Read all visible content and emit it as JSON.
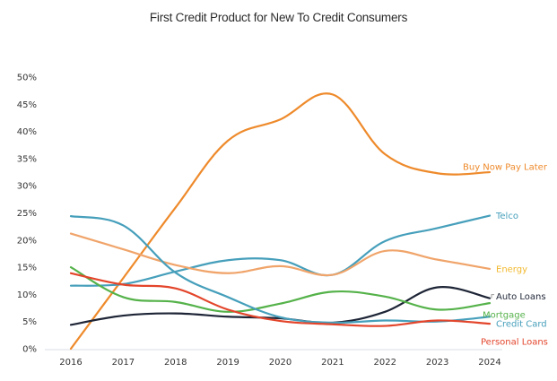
{
  "chart_data": {
    "type": "line",
    "title": "First Credit Product for New To Credit Consumers",
    "xlabel": "",
    "ylabel": "",
    "x": [
      "2016",
      "2017",
      "2018",
      "2019",
      "2020",
      "2021",
      "2022",
      "2023",
      "2024"
    ],
    "ylim": [
      0,
      50
    ],
    "yticks": [
      "0%",
      "5%",
      "10%",
      "15%",
      "20%",
      "25%",
      "30%",
      "35%",
      "40%",
      "45%",
      "50%"
    ],
    "ytick_values": [
      0,
      5,
      10,
      15,
      20,
      25,
      30,
      35,
      40,
      45,
      50
    ],
    "grid": false,
    "legend": "inline-right",
    "series": [
      {
        "name": "Buy Now Pay Later",
        "color": "#EE8A2B",
        "label_color": "#EE8A2B",
        "values": [
          0,
          13,
          26,
          38.3,
          42.2,
          46.8,
          35.8,
          32.3,
          32.5
        ]
      },
      {
        "name": "Telco",
        "color": "#469FBB",
        "label_color": "#469FBB",
        "values": [
          11.6,
          11.9,
          14.2,
          16.3,
          16.3,
          13.6,
          19.8,
          22.2,
          24.5
        ]
      },
      {
        "name": "Energy",
        "color": "#F0A46A",
        "label_color": "#F2B92E",
        "values": [
          21.2,
          18.3,
          15.4,
          13.9,
          15.2,
          13.6,
          18.0,
          16.4,
          14.7
        ]
      },
      {
        "name": "Auto Loans",
        "color": "#1E2536",
        "label_color": "#1E2536",
        "values": [
          4.4,
          6.1,
          6.5,
          5.9,
          5.6,
          4.8,
          6.8,
          11.3,
          9.3
        ]
      },
      {
        "name": "Mortgage",
        "color": "#55B24A",
        "label_color": "#55B24A",
        "values": [
          15.0,
          9.5,
          8.6,
          6.8,
          8.3,
          10.5,
          9.6,
          7.2,
          8.4
        ]
      },
      {
        "name": "Credit Card",
        "color": "#469FBB",
        "label_color": "#469FBB",
        "values": [
          24.4,
          22.7,
          14.0,
          9.5,
          5.8,
          4.8,
          5.2,
          5.0,
          5.9
        ]
      },
      {
        "name": "Personal Loans",
        "color": "#E3452B",
        "label_color": "#E3452B",
        "values": [
          13.9,
          11.8,
          11.1,
          7.2,
          5.1,
          4.5,
          4.2,
          5.2,
          4.6
        ]
      }
    ]
  }
}
